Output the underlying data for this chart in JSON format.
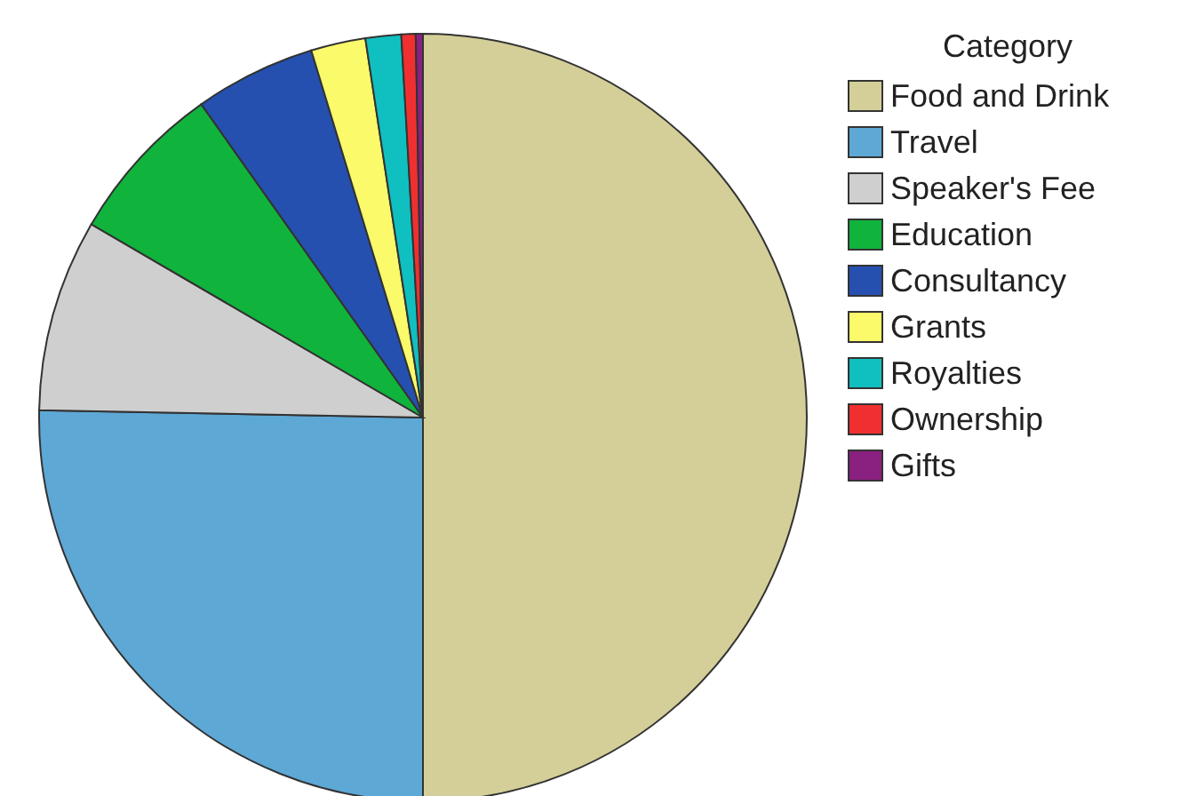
{
  "chart_data": {
    "type": "pie",
    "legend_title": "Category",
    "legend": "top right",
    "categories": [
      "Food and Drink",
      "Travel",
      "Speaker's Fee",
      "Education",
      "Consultancy",
      "Grants",
      "Royalties",
      "Ownership",
      "Gifts"
    ],
    "values": [
      50,
      25.3,
      8.1,
      6.8,
      5.1,
      2.3,
      1.5,
      0.6,
      0.3
    ],
    "colors": [
      "#d4cf98",
      "#5ea8d6",
      "#cfcfcf",
      "#10b43c",
      "#2550b0",
      "#fafa6a",
      "#10c0c0",
      "#f03030",
      "#8a2080"
    ]
  }
}
